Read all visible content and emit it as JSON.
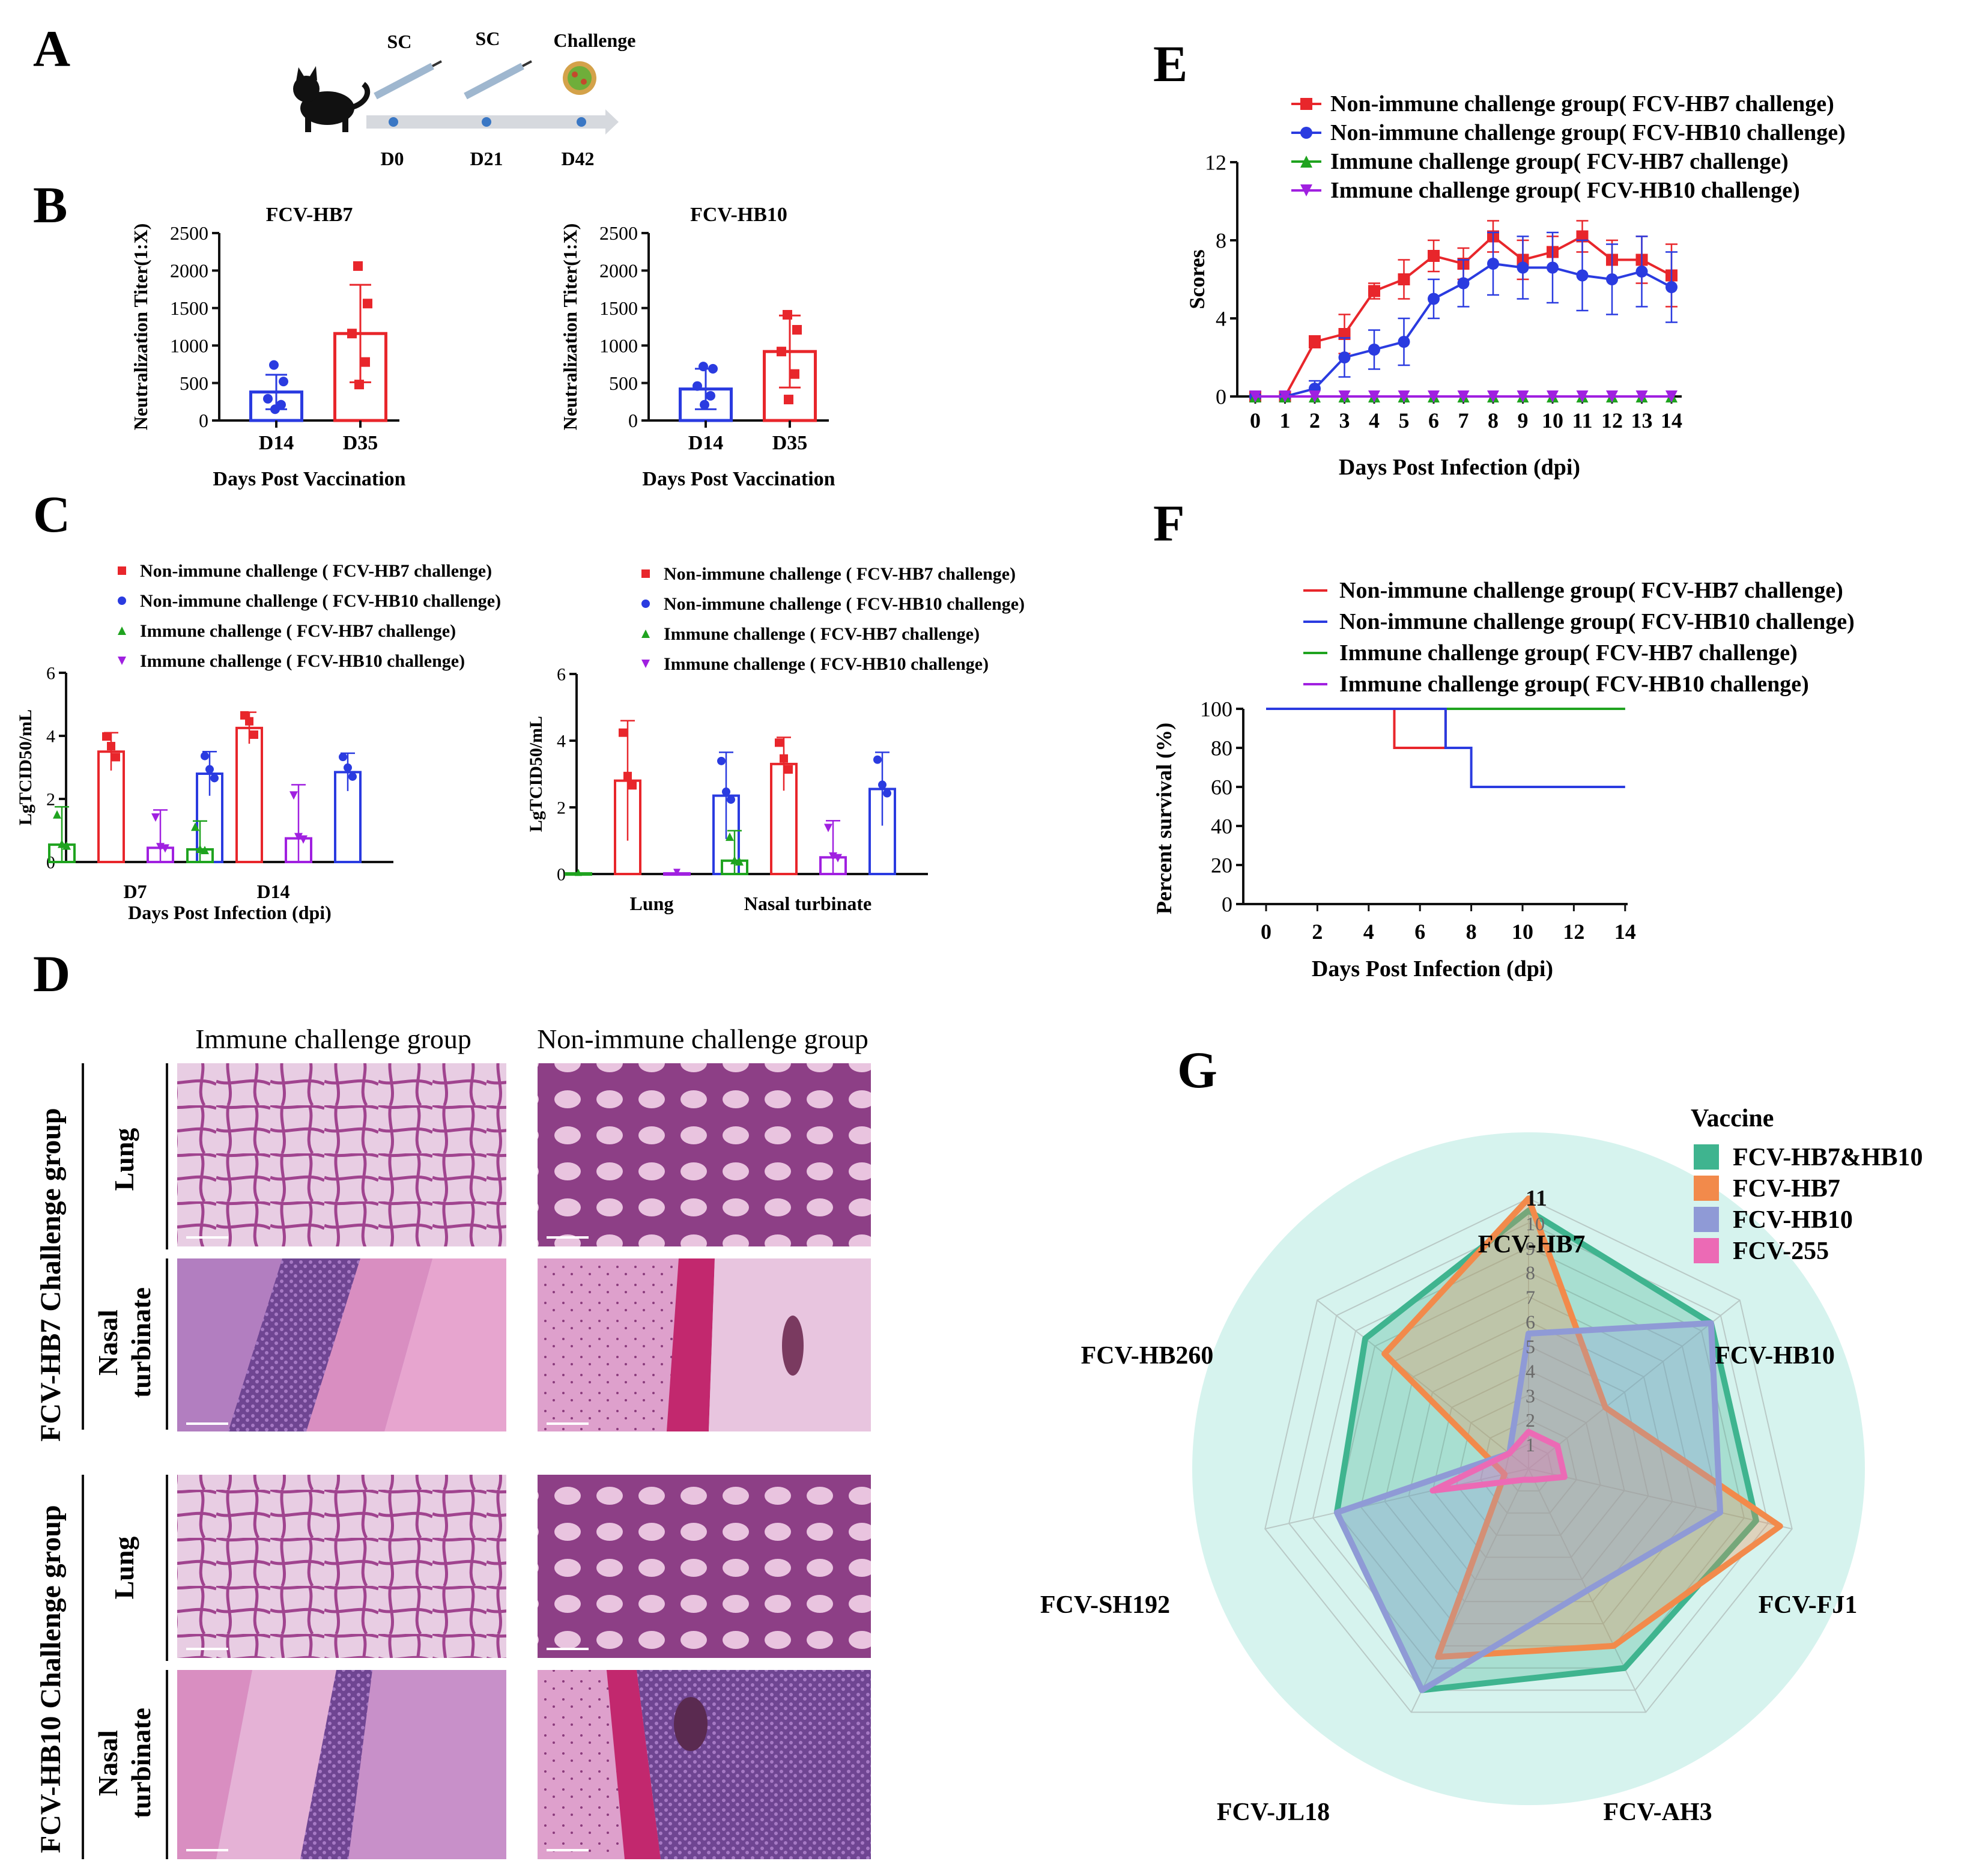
{
  "panels": {
    "A": "A",
    "B": "B",
    "C": "C",
    "D": "D",
    "E": "E",
    "F": "F",
    "G": "G"
  },
  "colors": {
    "red": "#e8262b",
    "blue": "#2a3be0",
    "green": "#1fa31f",
    "purple": "#a020e0",
    "teal": "#3fb48f",
    "orange": "#f28a4b",
    "lavender": "#8f9ad6",
    "pink": "#ec6ab5",
    "radar_bg": "#d6f3ee",
    "tissue_pink": "#d98ec1",
    "tissue_purple": "#9b4f9a"
  },
  "timeline": {
    "labels": [
      "SC",
      "SC",
      "Challenge"
    ],
    "days": [
      "D0",
      "D21",
      "D42"
    ]
  },
  "chart_data": [
    {
      "id": "B1",
      "type": "bar",
      "title": "FCV-HB7",
      "ylabel": "Neutralization Titer(1:X)",
      "xlabel": "Days Post Vaccination",
      "categories": [
        "D14",
        "D35"
      ],
      "values": [
        380,
        1160
      ],
      "errors": [
        230,
        650
      ],
      "points": [
        [
          740,
          520,
          290,
          210,
          150
        ],
        [
          2060,
          1560,
          1160,
          780,
          480
        ]
      ],
      "ylim": [
        0,
        2500
      ],
      "yticks": [
        "0",
        "500",
        "1000",
        "1500",
        "2000",
        "2500"
      ]
    },
    {
      "id": "B2",
      "type": "bar",
      "title": "FCV-HB10",
      "ylabel": "Neutralization Titer(1:X)",
      "xlabel": "Days Post Vaccination",
      "categories": [
        "D14",
        "D35"
      ],
      "values": [
        420,
        920
      ],
      "errors": [
        270,
        480
      ],
      "points": [
        [
          720,
          690,
          460,
          330,
          210
        ],
        [
          1410,
          1210,
          920,
          620,
          280
        ]
      ],
      "ylim": [
        0,
        2500
      ],
      "yticks": [
        "0",
        "500",
        "1000",
        "1500",
        "2000",
        "2500"
      ]
    },
    {
      "id": "C1",
      "type": "bar",
      "ylabel": "LgTCID50/mL",
      "xlabel": "Days Post Infection (dpi)",
      "categories": [
        "D7",
        "D14"
      ],
      "legend": [
        "Non-immune challenge ( FCV-HB7 challenge)",
        "Non-immune challenge ( FCV-HB10 challenge)",
        "Immune challenge ( FCV-HB7 challenge)",
        "Immune challenge ( FCV-HB10 challenge)"
      ],
      "series": [
        {
          "name": "Immune HB7",
          "values": [
            0.55,
            0.4
          ],
          "errors": [
            1.2,
            0.9
          ]
        },
        {
          "name": "Non-immune HB7",
          "values": [
            3.5,
            4.25
          ],
          "errors": [
            0.6,
            0.5
          ]
        },
        {
          "name": "Immune HB10",
          "values": [
            0.45,
            0.75
          ],
          "errors": [
            1.2,
            1.7
          ]
        },
        {
          "name": "Non-immune HB10",
          "values": [
            2.8,
            2.85
          ],
          "errors": [
            0.7,
            0.6
          ]
        }
      ],
      "ylim": [
        0,
        6
      ],
      "yticks": [
        "0",
        "2",
        "4",
        "6"
      ]
    },
    {
      "id": "C2",
      "type": "bar",
      "ylabel": "LgTCID50/mL",
      "categories": [
        "Lung",
        "Nasal turbinate"
      ],
      "legend": [
        "Non-immune challenge ( FCV-HB7 challenge)",
        "Non-immune challenge ( FCV-HB10 challenge)",
        "Immune challenge ( FCV-HB7 challenge)",
        "Immune challenge ( FCV-HB10 challenge)"
      ],
      "series": [
        {
          "name": "Immune HB7",
          "values": [
            0.02,
            0.4
          ],
          "errors": [
            0,
            0.9
          ]
        },
        {
          "name": "Non-immune HB7",
          "values": [
            2.8,
            3.3
          ],
          "errors": [
            1.8,
            0.8
          ]
        },
        {
          "name": "Immune HB10",
          "values": [
            0.02,
            0.5
          ],
          "errors": [
            0,
            1.1
          ]
        },
        {
          "name": "Non-immune HB10",
          "values": [
            2.35,
            2.55
          ],
          "errors": [
            1.3,
            1.1
          ]
        }
      ],
      "ylim": [
        0,
        6
      ],
      "yticks": [
        "0",
        "2",
        "4",
        "6"
      ]
    },
    {
      "id": "E",
      "type": "line",
      "ylabel": "Scores",
      "xlabel": "Days Post Infection (dpi)",
      "x": [
        0,
        1,
        2,
        3,
        4,
        5,
        6,
        7,
        8,
        9,
        10,
        11,
        12,
        13,
        14
      ],
      "legend": [
        "Non-immune challenge group( FCV-HB7 challenge)",
        "Non-immune challenge group( FCV-HB10 challenge)",
        "Immune challenge group( FCV-HB7 challenge)",
        "Immune challenge group( FCV-HB10 challenge)"
      ],
      "series": [
        {
          "name": "Non-immune HB7",
          "values": [
            0,
            0,
            2.8,
            3.2,
            5.4,
            6.0,
            7.2,
            6.8,
            8.2,
            7.0,
            7.4,
            8.2,
            7.0,
            7.0,
            6.2
          ],
          "errors": [
            0,
            0,
            0.3,
            1.0,
            0.4,
            1.0,
            0.8,
            0.8,
            0.8,
            1.0,
            0.8,
            0.8,
            1.0,
            1.2,
            1.6
          ]
        },
        {
          "name": "Non-immune HB10",
          "values": [
            0,
            0,
            0.4,
            2.0,
            2.4,
            2.8,
            5.0,
            5.8,
            6.8,
            6.6,
            6.6,
            6.2,
            6.0,
            6.4,
            5.6
          ],
          "errors": [
            0,
            0,
            0.4,
            1.0,
            1.0,
            1.2,
            1.0,
            1.2,
            1.6,
            1.6,
            1.8,
            1.8,
            1.8,
            1.8,
            1.8
          ]
        },
        {
          "name": "Immune HB7",
          "values": [
            0,
            0,
            0,
            0,
            0,
            0,
            0,
            0,
            0,
            0,
            0,
            0,
            0,
            0,
            0
          ]
        },
        {
          "name": "Immune HB10",
          "values": [
            0,
            0,
            0,
            0,
            0,
            0,
            0,
            0,
            0,
            0,
            0,
            0,
            0,
            0,
            0
          ]
        }
      ],
      "ylim": [
        0,
        12
      ],
      "yticks": [
        "0",
        "4",
        "8",
        "12"
      ],
      "xticks": [
        "0",
        "1",
        "2",
        "3",
        "4",
        "5",
        "6",
        "7",
        "8",
        "9",
        "10",
        "11",
        "12",
        "13",
        "14"
      ]
    },
    {
      "id": "F",
      "type": "line",
      "ylabel": "Percent survival (%)",
      "xlabel": "Days Post Infection (dpi)",
      "legend": [
        "Non-immune challenge group( FCV-HB7 challenge)",
        "Non-immune challenge group( FCV-HB10 challenge)",
        "Immune challenge group( FCV-HB7 challenge)",
        "Immune challenge group( FCV-HB10 challenge)"
      ],
      "series": [
        {
          "name": "Non-immune HB7",
          "steps": [
            [
              0,
              100
            ],
            [
              5,
              100
            ],
            [
              5,
              80
            ],
            [
              7,
              80
            ],
            [
              7,
              100
            ]
          ]
        },
        {
          "name": "Non-immune HB10",
          "steps": [
            [
              0,
              100
            ],
            [
              7,
              100
            ],
            [
              7,
              80
            ],
            [
              8,
              80
            ],
            [
              8,
              60
            ],
            [
              14,
              60
            ]
          ]
        },
        {
          "name": "Immune HB7",
          "steps": [
            [
              0,
              100
            ],
            [
              14,
              100
            ]
          ]
        },
        {
          "name": "Immune HB10",
          "steps": [
            [
              0,
              100
            ],
            [
              14,
              100
            ]
          ]
        }
      ],
      "ylim": [
        0,
        100
      ],
      "yticks": [
        "0",
        "20",
        "40",
        "60",
        "80",
        "100"
      ],
      "xticks": [
        "0",
        "2",
        "4",
        "6",
        "8",
        "10",
        "12",
        "14"
      ]
    },
    {
      "id": "G",
      "type": "radar",
      "legend_title": "Vaccine",
      "axes": [
        "FCV-HB7",
        "FCV-HB10",
        "FCV-FJ1",
        "FCV-AH3",
        "FCV-JL18",
        "FCV-SH192",
        "FCV-HB260"
      ],
      "rings": [
        "1",
        "2",
        "3",
        "4",
        "5",
        "6",
        "7",
        "8",
        "9",
        "10",
        "11"
      ],
      "max": 11,
      "series": [
        {
          "name": "FCV-HB7&HB10",
          "values": [
            10.5,
            9.5,
            9.5,
            9,
            10,
            8,
            8.5
          ]
        },
        {
          "name": "FCV-HB7",
          "values": [
            11,
            4,
            10.5,
            8,
            8.5,
            1,
            7.5
          ]
        },
        {
          "name": "FCV-HB10",
          "values": [
            5.5,
            9.5,
            8,
            5.5,
            10,
            8,
            1
          ]
        },
        {
          "name": "FCV-255",
          "values": [
            1.5,
            1.5,
            1.5,
            0.5,
            0.5,
            4,
            1
          ]
        }
      ]
    }
  ],
  "D": {
    "col1": "Immune challenge group",
    "col2": "Non-immune challenge group",
    "group1": "FCV-HB7 Challenge group",
    "group2": "FCV-HB10 Challenge group",
    "lung": "Lung",
    "nasal1": "Nasal",
    "nasal2": "turbinate"
  }
}
